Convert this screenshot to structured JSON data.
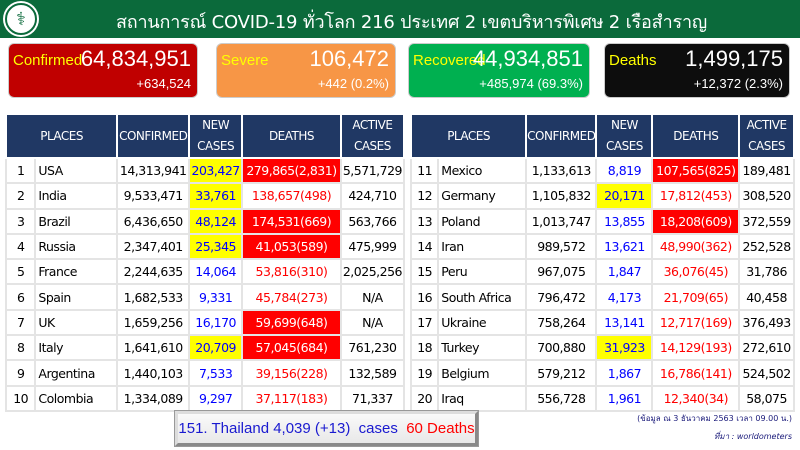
{
  "header": {
    "title": "สถานการณ์ COVID-19 ทั่วโลก 216 ประเทศ 2 เขตบริหารพิเศษ 2 เรือสำราญ",
    "logo": "ministry-of-public-health-logo"
  },
  "summary": [
    {
      "label": "Confirmed",
      "value": "64,834,951",
      "change": "+634,524",
      "color": "#c00000"
    },
    {
      "label": "Severe",
      "value": "106,472",
      "change": "+442 (0.2%)",
      "color": "#f79646"
    },
    {
      "label": "Recovered",
      "value": "44,934,851",
      "change": "+485,974 (69.3%)",
      "color": "#00b050"
    },
    {
      "label": "Deaths",
      "value": "1,499,175",
      "change": "+12,372 (2.3%)",
      "color": "#0d0d0d"
    }
  ],
  "table_headers": [
    "PLACES",
    "CONFIRMED",
    "NEW CASES",
    "DEATHS",
    "ACTIVE CASES"
  ],
  "left_rows": [
    {
      "rank": "1",
      "place": "USA",
      "confirmed": "14,313,941",
      "new": "203,427",
      "deaths": "279,865(2,831)",
      "active": "5,571,729",
      "new_hl": true,
      "deaths_hl": true
    },
    {
      "rank": "2",
      "place": "India",
      "confirmed": "9,533,471",
      "new": "33,761",
      "deaths": "138,657(498)",
      "active": "424,710",
      "new_hl": true,
      "deaths_hl": false
    },
    {
      "rank": "3",
      "place": "Brazil",
      "confirmed": "6,436,650",
      "new": "48,124",
      "deaths": "174,531(669)",
      "active": "563,766",
      "new_hl": true,
      "deaths_hl": true
    },
    {
      "rank": "4",
      "place": "Russia",
      "confirmed": "2,347,401",
      "new": "25,345",
      "deaths": "41,053(589)",
      "active": "475,999",
      "new_hl": true,
      "deaths_hl": true
    },
    {
      "rank": "5",
      "place": "France",
      "confirmed": "2,244,635",
      "new": "14,064",
      "deaths": "53,816(310)",
      "active": "2,025,256",
      "new_hl": false,
      "deaths_hl": false
    },
    {
      "rank": "6",
      "place": "Spain",
      "confirmed": "1,682,533",
      "new": "9,331",
      "deaths": "45,784(273)",
      "active": "N/A",
      "new_hl": false,
      "deaths_hl": false
    },
    {
      "rank": "7",
      "place": "UK",
      "confirmed": "1,659,256",
      "new": "16,170",
      "deaths": "59,699(648)",
      "active": "N/A",
      "new_hl": false,
      "deaths_hl": true
    },
    {
      "rank": "8",
      "place": "Italy",
      "confirmed": "1,641,610",
      "new": "20,709",
      "deaths": "57,045(684)",
      "active": "761,230",
      "new_hl": true,
      "deaths_hl": true
    },
    {
      "rank": "9",
      "place": "Argentina",
      "confirmed": "1,440,103",
      "new": "7,533",
      "deaths": "39,156(228)",
      "active": "132,589",
      "new_hl": false,
      "deaths_hl": false
    },
    {
      "rank": "10",
      "place": "Colombia",
      "confirmed": "1,334,089",
      "new": "9,297",
      "deaths": "37,117(183)",
      "active": "71,337",
      "new_hl": false,
      "deaths_hl": false
    }
  ],
  "right_rows": [
    {
      "rank": "11",
      "place": "Mexico",
      "confirmed": "1,133,613",
      "new": "8,819",
      "deaths": "107,565(825)",
      "active": "189,481",
      "new_hl": false,
      "deaths_hl": true
    },
    {
      "rank": "12",
      "place": "Germany",
      "confirmed": "1,105,832",
      "new": "20,171",
      "deaths": "17,812(453)",
      "active": "308,520",
      "new_hl": true,
      "deaths_hl": false
    },
    {
      "rank": "13",
      "place": "Poland",
      "confirmed": "1,013,747",
      "new": "13,855",
      "deaths": "18,208(609)",
      "active": "372,559",
      "new_hl": false,
      "deaths_hl": true
    },
    {
      "rank": "14",
      "place": "Iran",
      "confirmed": "989,572",
      "new": "13,621",
      "deaths": "48,990(362)",
      "active": "252,528",
      "new_hl": false,
      "deaths_hl": false
    },
    {
      "rank": "15",
      "place": "Peru",
      "confirmed": "967,075",
      "new": "1,847",
      "deaths": "36,076(45)",
      "active": "31,786",
      "new_hl": false,
      "deaths_hl": false
    },
    {
      "rank": "16",
      "place": "South Africa",
      "confirmed": "796,472",
      "new": "4,173",
      "deaths": "21,709(65)",
      "active": "40,458",
      "new_hl": false,
      "deaths_hl": false
    },
    {
      "rank": "17",
      "place": "Ukraine",
      "confirmed": "758,264",
      "new": "13,141",
      "deaths": "12,717(169)",
      "active": "376,493",
      "new_hl": false,
      "deaths_hl": false
    },
    {
      "rank": "18",
      "place": "Turkey",
      "confirmed": "700,880",
      "new": "31,923",
      "deaths": "14,129(193)",
      "active": "272,610",
      "new_hl": true,
      "deaths_hl": false
    },
    {
      "rank": "19",
      "place": "Belgium",
      "confirmed": "579,212",
      "new": "1,867",
      "deaths": "16,786(141)",
      "active": "524,502",
      "new_hl": false,
      "deaths_hl": false
    },
    {
      "rank": "20",
      "place": "Iraq",
      "confirmed": "556,728",
      "new": "1,961",
      "deaths": "12,340(34)",
      "active": "58,075",
      "new_hl": false,
      "deaths_hl": false
    }
  ],
  "thailand": {
    "cases": "151. Thailand 4,039 (+13)  cases  ",
    "deaths": "60 Deaths"
  },
  "footer": {
    "date_note": "(ข้อมูล ณ 3 ธันวาคม 2563 เวลา 09.00 น.)",
    "source": "ที่มา : worldometers"
  }
}
